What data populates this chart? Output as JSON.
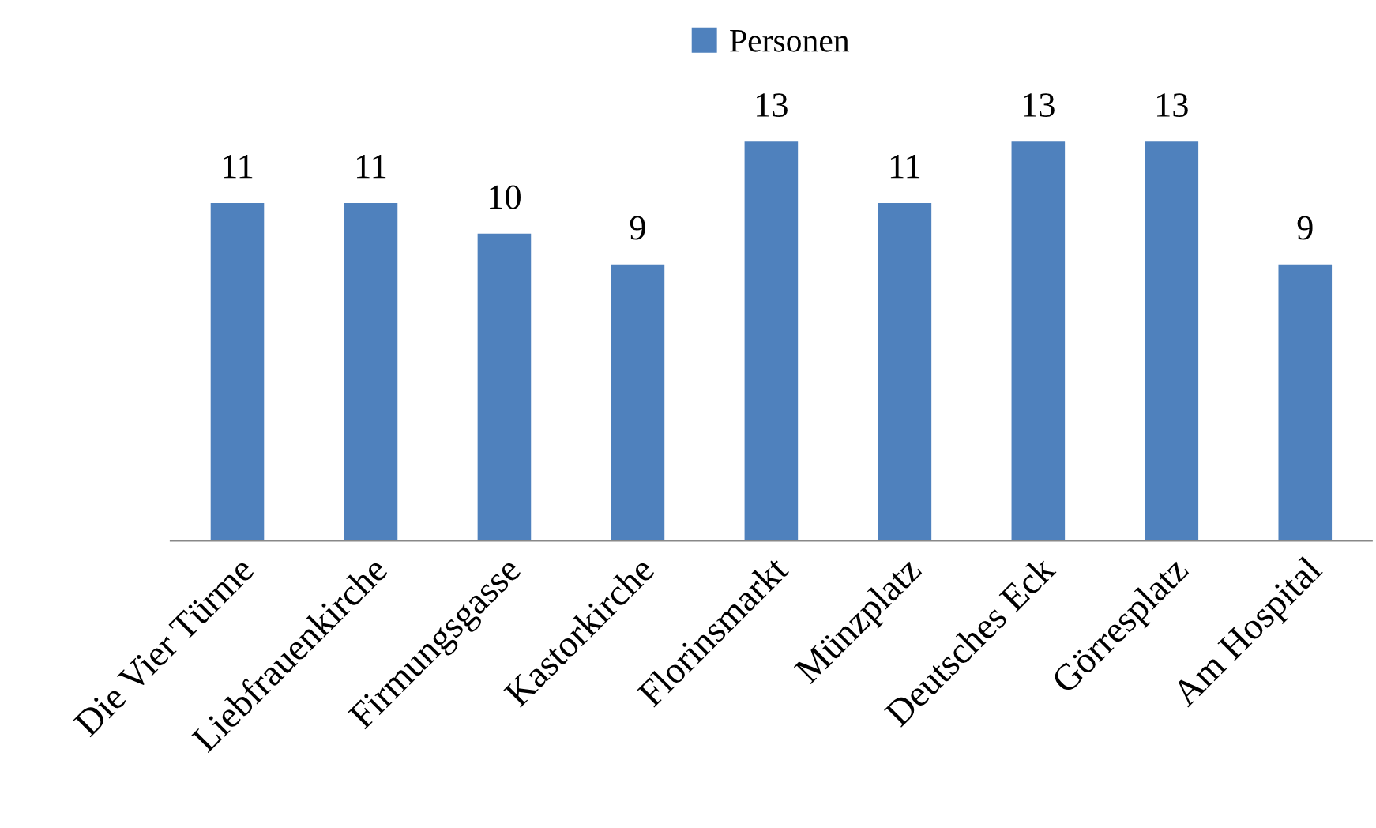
{
  "chart_data": {
    "type": "bar",
    "categories": [
      "Die Vier Türme",
      "Liebfrauenkirche",
      "Firmungsgasse",
      "Kastorkirche",
      "Florinsmarkt",
      "Münzplatz",
      "Deutsches Eck",
      "Görresplatz",
      "Am Hospital"
    ],
    "series": [
      {
        "name": "Personen",
        "color": "#4f81bd",
        "values": [
          11,
          11,
          10,
          9,
          13,
          11,
          13,
          13,
          9
        ]
      }
    ],
    "data_labels": true,
    "legend": "top",
    "grid": false,
    "tick_labels": "x"
  }
}
